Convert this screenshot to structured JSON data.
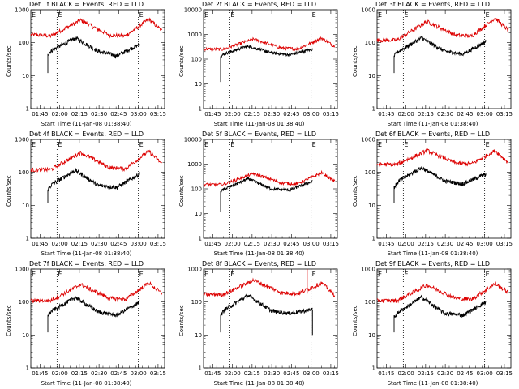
{
  "chart_data": [
    {
      "type": "line",
      "title": "Det 1f BLACK = Events, RED = LLD",
      "xlabel": "Start Time (11-Jan-08 01:38:40)",
      "ylabel": "Counts/sec",
      "yscale": "log",
      "ylim": [
        1,
        1000
      ],
      "yticks": [
        "1",
        "10",
        "100",
        "1000"
      ],
      "xticks": [
        "01:45",
        "02:00",
        "02:15",
        "02:30",
        "02:45",
        "03:00",
        "03:15"
      ],
      "marker_label": "E",
      "dotted_lines_x": [
        "01:58",
        "03:00"
      ],
      "attenuator_spike": false,
      "series": [
        {
          "name": "Events",
          "color": "#000000",
          "x_start": "01:51",
          "x_end": "03:01",
          "shape": [
            [
              0,
              45
            ],
            [
              0.05,
              60
            ],
            [
              0.3,
              140
            ],
            [
              0.55,
              55
            ],
            [
              0.75,
              40
            ],
            [
              1,
              90
            ]
          ]
        },
        {
          "name": "LLD",
          "color": "#dd0000",
          "x_start": "01:38",
          "x_end": "03:18",
          "shape": [
            [
              0,
              175
            ],
            [
              0.15,
              160
            ],
            [
              0.38,
              480
            ],
            [
              0.6,
              170
            ],
            [
              0.72,
              160
            ],
            [
              0.9,
              520
            ],
            [
              1,
              230
            ]
          ]
        }
      ]
    },
    {
      "type": "line",
      "title": "Det 2f BLACK = Events, RED = LLD",
      "xlabel": "Start Time (11-Jan-08 01:38:40)",
      "ylabel": "Counts/sec",
      "yscale": "log",
      "ylim": [
        1,
        10000
      ],
      "yticks": [
        "1",
        "10",
        "100",
        "1000",
        "10000"
      ],
      "xticks": [
        "01:45",
        "02:00",
        "02:15",
        "02:30",
        "02:45",
        "03:00",
        "03:15"
      ],
      "marker_label": "E",
      "dotted_lines_x": [
        "01:58",
        "03:00"
      ],
      "attenuator_spike": false,
      "series": [
        {
          "name": "Events",
          "color": "#000000",
          "x_start": "01:51",
          "x_end": "03:01",
          "shape": [
            [
              0,
              130
            ],
            [
              0.05,
              170
            ],
            [
              0.3,
              340
            ],
            [
              0.55,
              180
            ],
            [
              0.75,
              150
            ],
            [
              1,
              250
            ]
          ]
        },
        {
          "name": "LLD",
          "color": "#dd0000",
          "x_start": "01:38",
          "x_end": "03:18",
          "shape": [
            [
              0,
              260
            ],
            [
              0.15,
              250
            ],
            [
              0.38,
              650
            ],
            [
              0.6,
              280
            ],
            [
              0.72,
              260
            ],
            [
              0.9,
              720
            ],
            [
              1,
              330
            ]
          ]
        }
      ]
    },
    {
      "type": "line",
      "title": "Det 3f BLACK = Events, RED = LLD",
      "xlabel": "Start Time (11-Jan-08 01:38:40)",
      "ylabel": "Counts/sec",
      "yscale": "log",
      "ylim": [
        1,
        1000
      ],
      "yticks": [
        "1",
        "10",
        "100",
        "1000"
      ],
      "xticks": [
        "01:45",
        "02:00",
        "02:15",
        "02:30",
        "02:45",
        "03:00",
        "03:15"
      ],
      "marker_label": "E",
      "dotted_lines_x": [
        "01:58",
        "03:00"
      ],
      "attenuator_spike": false,
      "series": [
        {
          "name": "Events",
          "color": "#000000",
          "x_start": "01:51",
          "x_end": "03:01",
          "shape": [
            [
              0,
              40
            ],
            [
              0.05,
              55
            ],
            [
              0.3,
              140
            ],
            [
              0.55,
              55
            ],
            [
              0.75,
              45
            ],
            [
              1,
              110
            ]
          ]
        },
        {
          "name": "LLD",
          "color": "#dd0000",
          "x_start": "01:38",
          "x_end": "03:18",
          "shape": [
            [
              0,
              120
            ],
            [
              0.15,
              120
            ],
            [
              0.38,
              440
            ],
            [
              0.6,
              170
            ],
            [
              0.72,
              160
            ],
            [
              0.9,
              560
            ],
            [
              1,
              240
            ]
          ]
        }
      ]
    },
    {
      "type": "line",
      "title": "Det 4f BLACK = Events, RED = LLD",
      "xlabel": "Start Time (11-Jan-08 01:38:40)",
      "ylabel": "Counts/sec",
      "yscale": "log",
      "ylim": [
        1,
        1000
      ],
      "yticks": [
        "1",
        "10",
        "100",
        "1000"
      ],
      "xticks": [
        "01:45",
        "02:00",
        "02:15",
        "02:30",
        "02:45",
        "03:00",
        "03:15"
      ],
      "marker_label": "E",
      "dotted_lines_x": [
        "01:58",
        "03:00"
      ],
      "attenuator_spike": false,
      "series": [
        {
          "name": "Events",
          "color": "#000000",
          "x_start": "01:51",
          "x_end": "03:01",
          "shape": [
            [
              0,
              30
            ],
            [
              0.05,
              45
            ],
            [
              0.3,
              115
            ],
            [
              0.55,
              40
            ],
            [
              0.75,
              35
            ],
            [
              1,
              90
            ]
          ]
        },
        {
          "name": "LLD",
          "color": "#dd0000",
          "x_start": "01:38",
          "x_end": "03:18",
          "shape": [
            [
              0,
              120
            ],
            [
              0.15,
              120
            ],
            [
              0.38,
              400
            ],
            [
              0.6,
              140
            ],
            [
              0.72,
              130
            ],
            [
              0.9,
              440
            ],
            [
              1,
              180
            ]
          ]
        }
      ]
    },
    {
      "type": "line",
      "title": "Det 5f BLACK = Events, RED = LLD",
      "xlabel": "Start Time (11-Jan-08 01:38:40)",
      "ylabel": "Counts/sec",
      "yscale": "log",
      "ylim": [
        1,
        10000
      ],
      "yticks": [
        "1",
        "10",
        "100",
        "1000",
        "10000"
      ],
      "xticks": [
        "01:45",
        "02:00",
        "02:15",
        "02:30",
        "02:45",
        "03:00",
        "03:15"
      ],
      "marker_label": "E",
      "dotted_lines_x": [
        "01:58",
        "03:00"
      ],
      "attenuator_spike": false,
      "series": [
        {
          "name": "Events",
          "color": "#000000",
          "x_start": "01:51",
          "x_end": "03:01",
          "shape": [
            [
              0,
              80
            ],
            [
              0.05,
              100
            ],
            [
              0.3,
              260
            ],
            [
              0.55,
              100
            ],
            [
              0.75,
              90
            ],
            [
              1,
              200
            ]
          ]
        },
        {
          "name": "LLD",
          "color": "#dd0000",
          "x_start": "01:38",
          "x_end": "03:18",
          "shape": [
            [
              0,
              150
            ],
            [
              0.15,
              150
            ],
            [
              0.38,
              420
            ],
            [
              0.6,
              170
            ],
            [
              0.72,
              160
            ],
            [
              0.9,
              450
            ],
            [
              1,
              200
            ]
          ]
        }
      ]
    },
    {
      "type": "line",
      "title": "Det 6f BLACK = Events, RED = LLD",
      "xlabel": "Start Time (11-Jan-08 01:38:40)",
      "ylabel": "Counts/sec",
      "yscale": "log",
      "ylim": [
        1,
        1000
      ],
      "yticks": [
        "1",
        "10",
        "100",
        "1000"
      ],
      "xticks": [
        "01:45",
        "02:00",
        "02:15",
        "02:30",
        "02:45",
        "03:00",
        "03:15"
      ],
      "marker_label": "E",
      "dotted_lines_x": [
        "01:58",
        "03:00"
      ],
      "attenuator_spike": false,
      "series": [
        {
          "name": "Events",
          "color": "#000000",
          "x_start": "01:51",
          "x_end": "03:01",
          "shape": [
            [
              0,
              35
            ],
            [
              0.05,
              55
            ],
            [
              0.3,
              140
            ],
            [
              0.55,
              55
            ],
            [
              0.75,
              45
            ],
            [
              1,
              90
            ]
          ]
        },
        {
          "name": "LLD",
          "color": "#dd0000",
          "x_start": "01:38",
          "x_end": "03:18",
          "shape": [
            [
              0,
              175
            ],
            [
              0.15,
              175
            ],
            [
              0.38,
              460
            ],
            [
              0.6,
              190
            ],
            [
              0.72,
              180
            ],
            [
              0.9,
              460
            ],
            [
              1,
              200
            ]
          ]
        }
      ]
    },
    {
      "type": "line",
      "title": "Det 7f BLACK = Events, RED = LLD",
      "xlabel": "Start Time (11-Jan-08 01:38:40)",
      "ylabel": "Counts/sec",
      "yscale": "log",
      "ylim": [
        1,
        1000
      ],
      "yticks": [
        "1",
        "10",
        "100",
        "1000"
      ],
      "xticks": [
        "01:45",
        "02:00",
        "02:15",
        "02:30",
        "02:45",
        "03:00",
        "03:15"
      ],
      "marker_label": "E",
      "dotted_lines_x": [
        "01:58",
        "03:00"
      ],
      "attenuator_spike": false,
      "series": [
        {
          "name": "Events",
          "color": "#000000",
          "x_start": "01:51",
          "x_end": "03:01",
          "shape": [
            [
              0,
              40
            ],
            [
              0.05,
              55
            ],
            [
              0.3,
              140
            ],
            [
              0.55,
              50
            ],
            [
              0.75,
              40
            ],
            [
              1,
              100
            ]
          ]
        },
        {
          "name": "LLD",
          "color": "#dd0000",
          "x_start": "01:38",
          "x_end": "03:18",
          "shape": [
            [
              0,
              110
            ],
            [
              0.15,
              110
            ],
            [
              0.38,
              340
            ],
            [
              0.6,
              130
            ],
            [
              0.72,
              120
            ],
            [
              0.9,
              380
            ],
            [
              1,
              180
            ]
          ]
        }
      ]
    },
    {
      "type": "line",
      "title": "Det 8f BLACK = Events, RED = LLD",
      "xlabel": "Start Time (11-Jan-08 01:38:40)",
      "ylabel": "Counts/sec",
      "yscale": "log",
      "ylim": [
        1,
        1000
      ],
      "yticks": [
        "1",
        "10",
        "100",
        "1000"
      ],
      "xticks": [
        "01:45",
        "02:00",
        "02:15",
        "02:30",
        "02:45",
        "03:00",
        "03:15"
      ],
      "marker_label": "E",
      "dotted_lines_x": [
        "01:58",
        "03:00"
      ],
      "attenuator_spike": true,
      "series": [
        {
          "name": "Events",
          "color": "#000000",
          "x_start": "01:51",
          "x_end": "03:01",
          "shape": [
            [
              0,
              40
            ],
            [
              0.05,
              60
            ],
            [
              0.3,
              160
            ],
            [
              0.55,
              55
            ],
            [
              0.75,
              45
            ],
            [
              1,
              60
            ]
          ]
        },
        {
          "name": "LLD",
          "color": "#dd0000",
          "x_start": "01:38",
          "x_end": "03:18",
          "shape": [
            [
              0,
              170
            ],
            [
              0.15,
              170
            ],
            [
              0.38,
              460
            ],
            [
              0.6,
              190
            ],
            [
              0.72,
              180
            ],
            [
              0.9,
              380
            ],
            [
              1,
              160
            ]
          ]
        }
      ]
    },
    {
      "type": "line",
      "title": "Det 9f BLACK = Events, RED = LLD",
      "xlabel": "Start Time (11-Jan-08 01:38:40)",
      "ylabel": "Counts/sec",
      "yscale": "log",
      "ylim": [
        1,
        1000
      ],
      "yticks": [
        "1",
        "10",
        "100",
        "1000"
      ],
      "xticks": [
        "01:45",
        "02:00",
        "02:15",
        "02:30",
        "02:45",
        "03:00",
        "03:15"
      ],
      "marker_label": "E",
      "dotted_lines_x": [
        "01:58",
        "03:00"
      ],
      "attenuator_spike": false,
      "series": [
        {
          "name": "Events",
          "color": "#000000",
          "x_start": "01:51",
          "x_end": "03:01",
          "shape": [
            [
              0,
              35
            ],
            [
              0.05,
              50
            ],
            [
              0.3,
              140
            ],
            [
              0.55,
              45
            ],
            [
              0.75,
              40
            ],
            [
              1,
              100
            ]
          ]
        },
        {
          "name": "LLD",
          "color": "#dd0000",
          "x_start": "01:38",
          "x_end": "03:18",
          "shape": [
            [
              0,
              110
            ],
            [
              0.15,
              110
            ],
            [
              0.38,
              330
            ],
            [
              0.6,
              130
            ],
            [
              0.72,
              120
            ],
            [
              0.9,
              360
            ],
            [
              1,
              200
            ]
          ]
        }
      ]
    }
  ]
}
